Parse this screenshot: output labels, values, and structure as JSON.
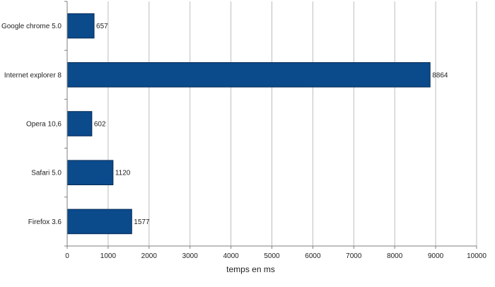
{
  "chart_data": {
    "type": "bar",
    "orientation": "horizontal",
    "title": "",
    "xlabel": "temps en ms",
    "ylabel": "",
    "categories": [
      "Google chrome 5.0",
      "Internet explorer 8",
      "Opera 10,6",
      "Safari 5.0",
      "Firefox 3.6"
    ],
    "values": [
      657,
      8864,
      602,
      1120,
      1577
    ],
    "data_labels": [
      "657",
      "8864",
      "602",
      "1120",
      "1577"
    ],
    "xlim": [
      0,
      10000
    ],
    "xticks": [
      0,
      1000,
      2000,
      3000,
      4000,
      5000,
      6000,
      7000,
      8000,
      9000,
      10000
    ],
    "xtick_labels": [
      "0",
      "1000",
      "2000",
      "3000",
      "4000",
      "5000",
      "6000",
      "7000",
      "8000",
      "9000",
      "10000"
    ],
    "grid": "vertical",
    "legend": "none",
    "colors": {
      "bar_fill": "#0b4a8b",
      "bar_stroke": "#062b55",
      "grid": "#bdbdbd",
      "axis": "#7f7f7f",
      "text": "#222222"
    }
  }
}
